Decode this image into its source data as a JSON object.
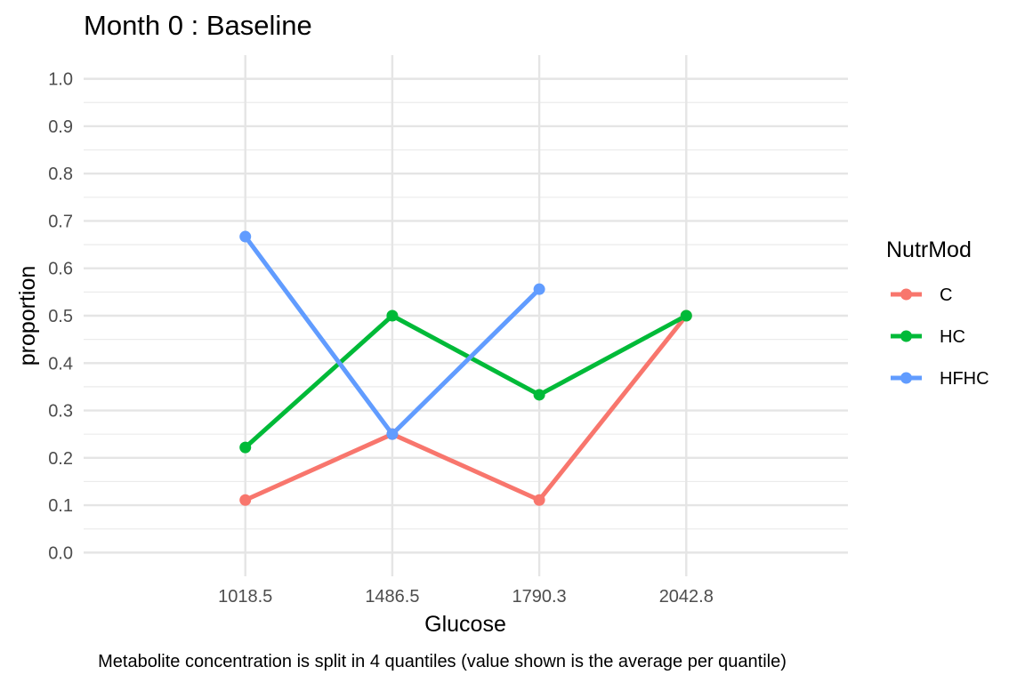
{
  "chart_data": {
    "type": "line",
    "title": "Month 0 : Baseline",
    "xlabel": "Glucose",
    "ylabel": "proportion",
    "caption": "Metabolite concentration is split in 4 quantiles (value shown is the average per quantile)",
    "categories": [
      "1018.5",
      "1486.5",
      "1790.3",
      "2042.8"
    ],
    "y_ticks": [
      "0.0",
      "0.1",
      "0.2",
      "0.3",
      "0.4",
      "0.5",
      "0.6",
      "0.7",
      "0.8",
      "0.9",
      "1.0"
    ],
    "ylim": [
      -0.05,
      1.05
    ],
    "grid": true,
    "legend": {
      "title": "NutrMod",
      "position": "right"
    },
    "series": [
      {
        "name": "C",
        "color": "#F8766D",
        "values": [
          0.111,
          0.25,
          0.111,
          0.5
        ]
      },
      {
        "name": "HC",
        "color": "#00BA38",
        "values": [
          0.222,
          0.5,
          0.333,
          0.5
        ]
      },
      {
        "name": "HFHC",
        "color": "#619CFF",
        "values": [
          0.667,
          0.25,
          0.556,
          null
        ]
      }
    ]
  }
}
